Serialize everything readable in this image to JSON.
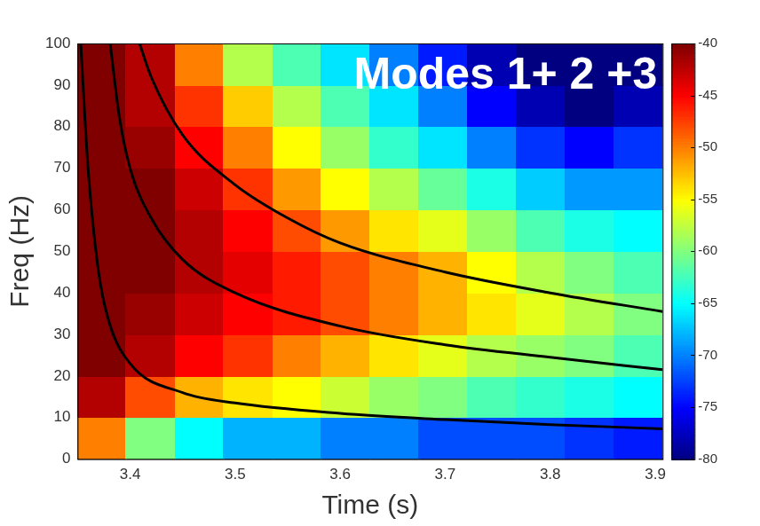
{
  "chart_data": {
    "type": "heatmap",
    "annotation": "Modes 1+ 2 +3",
    "x_label": "Time (s)",
    "y_label": "Freq (Hz)",
    "xlim": [
      3.35,
      3.907
    ],
    "ylim": [
      0,
      100
    ],
    "xticks": [
      3.4,
      3.5,
      3.6,
      3.7,
      3.8,
      3.9
    ],
    "yticks": [
      0,
      10,
      20,
      30,
      40,
      50,
      60,
      70,
      80,
      90,
      100
    ],
    "grid": false,
    "cells": {
      "x_edges": [
        3.35,
        3.396,
        3.443,
        3.489,
        3.536,
        3.582,
        3.628,
        3.675,
        3.721,
        3.768,
        3.814,
        3.861,
        3.907
      ],
      "y_edges": [
        0,
        10,
        20,
        30,
        40,
        50,
        60,
        70,
        80,
        90,
        100
      ],
      "values": [
        [
          -50,
          -60,
          -65,
          -68,
          -68,
          -70,
          -70,
          -72,
          -72,
          -72,
          -73,
          -74
        ],
        [
          -42,
          -48,
          -52,
          -54,
          -55,
          -57,
          -59,
          -60,
          -62,
          -63,
          -64,
          -65
        ],
        [
          -40,
          -42,
          -45,
          -47,
          -50,
          -52,
          -54,
          -56,
          -58,
          -59,
          -60,
          -62
        ],
        [
          -40,
          -41,
          -43,
          -45,
          -46,
          -48,
          -50,
          -52,
          -54,
          -56,
          -58,
          -60
        ],
        [
          -40,
          -40,
          -42,
          -44,
          -46,
          -48,
          -50,
          -52,
          -55,
          -58,
          -60,
          -62
        ],
        [
          -40,
          -40,
          -42,
          -45,
          -48,
          -51,
          -54,
          -56,
          -59,
          -62,
          -64,
          -65
        ],
        [
          -40,
          -40,
          -43,
          -47,
          -51,
          -55,
          -58,
          -61,
          -64,
          -67,
          -69,
          -69
        ],
        [
          -40,
          -41,
          -45,
          -50,
          -55,
          -59,
          -63,
          -66,
          -70,
          -73,
          -75,
          -73
        ],
        [
          -40,
          -42,
          -47,
          -53,
          -58,
          -62,
          -66,
          -70,
          -75,
          -78,
          -80,
          -78
        ],
        [
          -40,
          -42,
          -50,
          -58,
          -62,
          -66,
          -70,
          -74,
          -78,
          -80,
          -80,
          -80
        ]
      ]
    },
    "colorbar": {
      "range": [
        -80,
        -40
      ],
      "ticks": [
        -40,
        -45,
        -50,
        -55,
        -60,
        -65,
        -70,
        -75,
        -80
      ]
    },
    "series": [
      {
        "color": "#000000",
        "line_style": "solid",
        "x": [
          3.353,
          3.36,
          3.37,
          3.38,
          3.4,
          3.45,
          3.5,
          3.6,
          3.7,
          3.8,
          3.907
        ],
        "values": [
          100,
          70,
          45,
          33,
          23,
          16,
          13.5,
          11,
          9.5,
          8.3,
          7.3
        ]
      },
      {
        "color": "#000000",
        "line_style": "solid",
        "x": [
          3.381,
          3.39,
          3.4,
          3.42,
          3.45,
          3.5,
          3.6,
          3.7,
          3.8,
          3.907
        ],
        "values": [
          100,
          82,
          70,
          58,
          48,
          40,
          32,
          27.5,
          24.5,
          21.5
        ]
      },
      {
        "color": "#000000",
        "line_style": "solid",
        "x": [
          3.409,
          3.42,
          3.45,
          3.5,
          3.55,
          3.6,
          3.7,
          3.8,
          3.907
        ],
        "values": [
          100,
          92,
          78,
          66,
          58,
          52,
          45,
          40,
          35.5
        ]
      }
    ]
  }
}
